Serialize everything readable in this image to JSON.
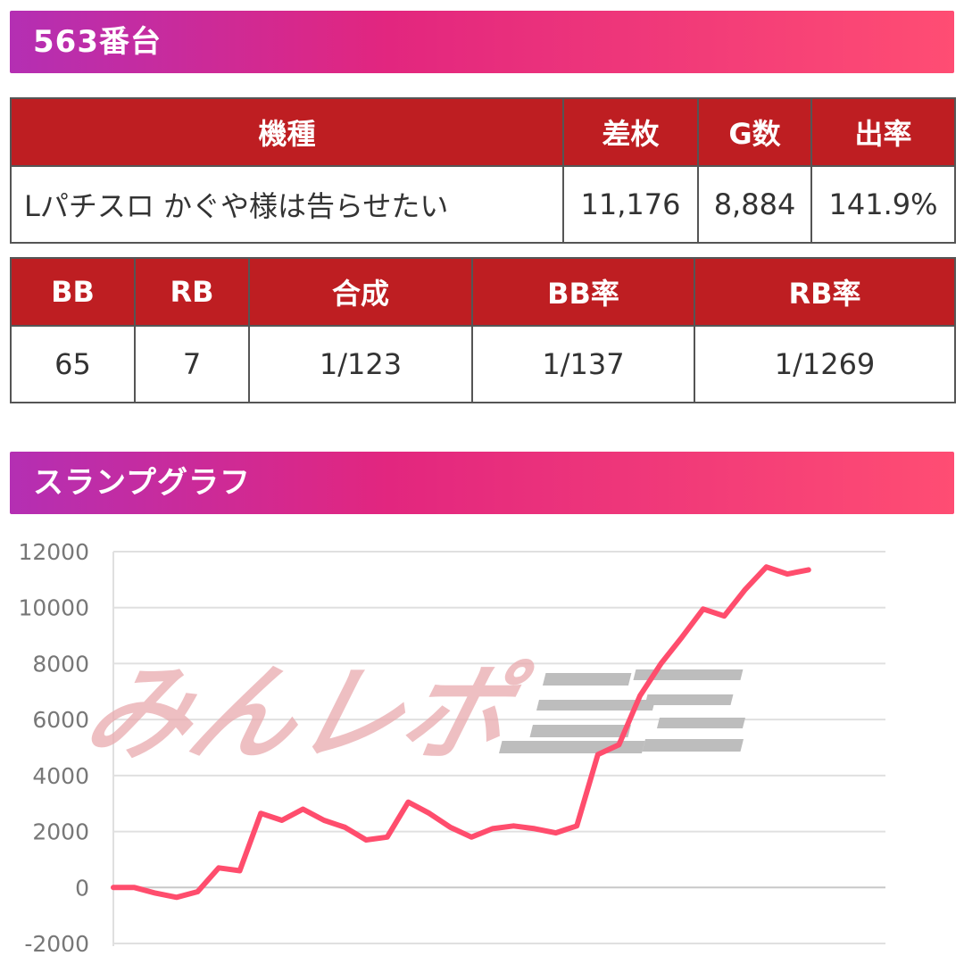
{
  "machine_section": {
    "title": "563番台"
  },
  "summary_table": {
    "headers": [
      "機種",
      "差枚",
      "G数",
      "出率"
    ],
    "row": [
      "Lパチスロ かぐや様は告らせたい",
      "11,176",
      "8,884",
      "141.9%"
    ]
  },
  "bonus_table": {
    "headers": [
      "BB",
      "RB",
      "合成",
      "BB率",
      "RB率"
    ],
    "row": [
      "65",
      "7",
      "1/123",
      "1/137",
      "1/1269"
    ]
  },
  "graph_section": {
    "title": "スランプグラフ"
  },
  "watermark": {
    "text": "みんレポ"
  },
  "colors": {
    "header_gradient_start": "#b42fb3",
    "header_gradient_end": "#ff4d73",
    "table_header": "#be1e22",
    "line": "#ff4d6d",
    "gridline": "#e0e0e0"
  },
  "chart_data": {
    "type": "line",
    "title": "",
    "xlabel": "",
    "ylabel": "",
    "ylim": [
      -2000,
      12000
    ],
    "yticks": [
      12000,
      10000,
      8000,
      6000,
      4000,
      2000,
      0,
      -2000
    ],
    "grid": true,
    "series": [
      {
        "values": [
          0,
          0,
          -200,
          -350,
          -150,
          700,
          600,
          2650,
          2400,
          2800,
          2400,
          2150,
          1700,
          1800,
          3050,
          2650,
          2150,
          1800,
          2100,
          2200,
          2100,
          1950,
          2200,
          4750,
          5100,
          6850,
          8000,
          8950,
          9950,
          9700,
          10650,
          11450,
          11200,
          11350
        ]
      }
    ]
  }
}
